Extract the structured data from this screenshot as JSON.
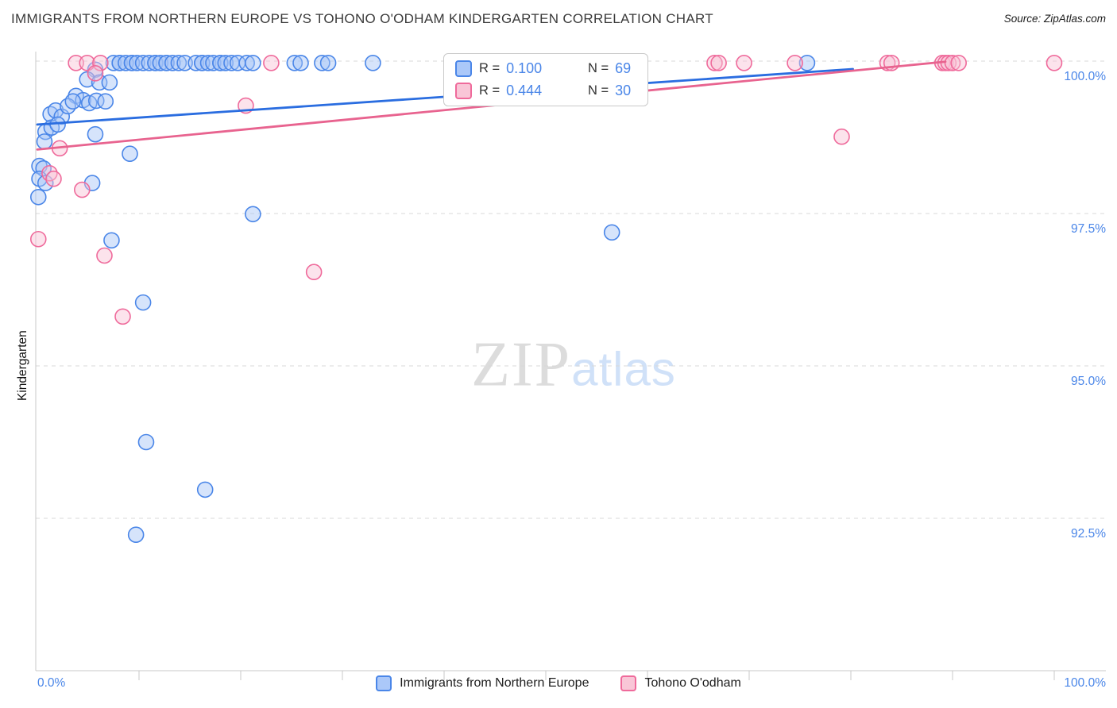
{
  "header": {
    "title": "IMMIGRANTS FROM NORTHERN EUROPE VS TOHONO O'ODHAM KINDERGARTEN CORRELATION CHART",
    "source": "Source: ZipAtlas.com"
  },
  "watermark": {
    "part1": "ZIP",
    "part2": "atlas"
  },
  "axes": {
    "y_label": "Kindergarten",
    "y_tick_labels": [
      "100.0%",
      "97.5%",
      "95.0%",
      "92.5%"
    ],
    "x_tick_left": "0.0%",
    "x_tick_right": "100.0%"
  },
  "legend_box": {
    "rows": [
      {
        "r_label": "R =",
        "r_value": "0.100",
        "n_label": "N =",
        "n_value": "69"
      },
      {
        "r_label": "R =",
        "r_value": "0.444",
        "n_label": "N =",
        "n_value": "30"
      }
    ]
  },
  "bottom_legend": {
    "series1": "Immigrants from Northern Europe",
    "series2": "Tohono O'odham"
  },
  "colors": {
    "blue_stroke": "#4a86e8",
    "blue_fill": "#a5c4f7",
    "blue_line": "#2a6de0",
    "pink_stroke": "#ef6a9b",
    "pink_fill": "#f9c2d4",
    "pink_line": "#e8638f",
    "tick_label": "#4a86e8",
    "grid": "#d9d9d9",
    "axis": "#c9c9c9"
  },
  "chart_data": {
    "type": "scatter",
    "title": "Immigrants from Northern Europe vs Tohono O'odham Kindergarten correlation",
    "xlabel": "Immigrants from Northern Europe (%)",
    "ylabel": "Kindergarten (%)",
    "x_range": [
      0,
      100
    ],
    "y_range": [
      90.5,
      100.3
    ],
    "y_ticks": [
      100.0,
      97.5,
      95.0,
      92.5
    ],
    "grid": "dashed-horizontal",
    "legend_position": "top-center",
    "series": [
      {
        "name": "Immigrants from Northern Europe",
        "key": "blue",
        "R": 0.1,
        "N": 69,
        "trend": {
          "x1": 0,
          "y1": 98.96,
          "x2": 80.2,
          "y2": 99.87
        },
        "points": [
          [
            7.5,
            99.97
          ],
          [
            8.1,
            99.97
          ],
          [
            8.1,
            99.97
          ],
          [
            8.7,
            99.97
          ],
          [
            9.3,
            99.97
          ],
          [
            9.3,
            99.97
          ],
          [
            9.8,
            99.97
          ],
          [
            10.4,
            99.97
          ],
          [
            11.0,
            99.97
          ],
          [
            11.6,
            99.97
          ],
          [
            11.6,
            99.97
          ],
          [
            12.1,
            99.97
          ],
          [
            12.7,
            99.97
          ],
          [
            12.7,
            99.97
          ],
          [
            13.3,
            99.97
          ],
          [
            13.9,
            99.97
          ],
          [
            14.5,
            99.97
          ],
          [
            15.6,
            99.97
          ],
          [
            16.2,
            99.97
          ],
          [
            16.2,
            99.97
          ],
          [
            16.8,
            99.97
          ],
          [
            17.3,
            99.97
          ],
          [
            18.0,
            99.97
          ],
          [
            18.0,
            99.97
          ],
          [
            18.5,
            99.97
          ],
          [
            19.1,
            99.97
          ],
          [
            19.7,
            99.97
          ],
          [
            20.6,
            99.97
          ],
          [
            21.2,
            99.97
          ],
          [
            25.3,
            99.97
          ],
          [
            25.9,
            99.97
          ],
          [
            28.0,
            99.97
          ],
          [
            28.6,
            99.97
          ],
          [
            33.0,
            99.97
          ],
          [
            55.0,
            99.97
          ],
          [
            75.7,
            99.97
          ],
          [
            5.7,
            99.86
          ],
          [
            4.9,
            99.7
          ],
          [
            6.1,
            99.65
          ],
          [
            7.1,
            99.65
          ],
          [
            3.8,
            99.43
          ],
          [
            4.5,
            99.36
          ],
          [
            5.1,
            99.31
          ],
          [
            5.8,
            99.35
          ],
          [
            6.7,
            99.34
          ],
          [
            1.3,
            99.13
          ],
          [
            1.8,
            99.19
          ],
          [
            2.4,
            99.09
          ],
          [
            3.0,
            99.26
          ],
          [
            3.5,
            99.34
          ],
          [
            0.8,
            98.84
          ],
          [
            1.4,
            98.91
          ],
          [
            2.0,
            98.96
          ],
          [
            0.7,
            98.68
          ],
          [
            5.7,
            98.8
          ],
          [
            9.1,
            98.48
          ],
          [
            0.2,
            98.28
          ],
          [
            0.6,
            98.24
          ],
          [
            0.2,
            98.07
          ],
          [
            0.8,
            98.0
          ],
          [
            0.1,
            97.77
          ],
          [
            5.4,
            98.0
          ],
          [
            21.2,
            97.49
          ],
          [
            56.5,
            97.19
          ],
          [
            7.3,
            97.06
          ],
          [
            10.4,
            96.04
          ],
          [
            10.7,
            93.75
          ],
          [
            16.5,
            92.97
          ],
          [
            9.7,
            92.23
          ]
        ]
      },
      {
        "name": "Tohono O'odham",
        "key": "pink",
        "R": 0.444,
        "N": 30,
        "trend": {
          "x1": 0,
          "y1": 98.55,
          "x2": 89.3,
          "y2": 99.99
        },
        "points": [
          [
            3.8,
            99.97
          ],
          [
            4.9,
            99.97
          ],
          [
            6.2,
            99.97
          ],
          [
            23.0,
            99.97
          ],
          [
            41.8,
            99.97
          ],
          [
            47.6,
            99.97
          ],
          [
            47.9,
            99.97
          ],
          [
            66.6,
            99.97
          ],
          [
            67.0,
            99.97
          ],
          [
            69.5,
            99.97
          ],
          [
            74.5,
            99.97
          ],
          [
            83.6,
            99.97
          ],
          [
            84.0,
            99.97
          ],
          [
            89.0,
            99.97
          ],
          [
            89.3,
            99.97
          ],
          [
            89.6,
            99.97
          ],
          [
            90.0,
            99.97
          ],
          [
            90.6,
            99.97
          ],
          [
            100.0,
            99.97
          ],
          [
            5.7,
            99.8
          ],
          [
            20.5,
            99.27
          ],
          [
            79.1,
            98.76
          ],
          [
            2.2,
            98.57
          ],
          [
            1.2,
            98.16
          ],
          [
            1.6,
            98.07
          ],
          [
            4.4,
            97.89
          ],
          [
            0.1,
            97.08
          ],
          [
            6.6,
            96.81
          ],
          [
            27.2,
            96.54
          ],
          [
            8.4,
            95.81
          ]
        ]
      }
    ]
  }
}
